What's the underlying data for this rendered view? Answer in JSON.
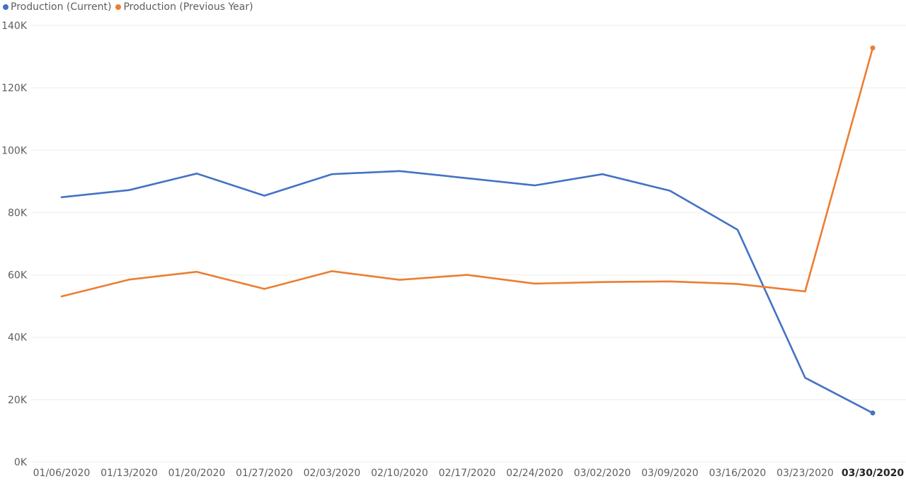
{
  "chart_data": {
    "type": "line",
    "categories": [
      "01/06/2020",
      "01/13/2020",
      "01/20/2020",
      "01/27/2020",
      "02/03/2020",
      "02/10/2020",
      "02/17/2020",
      "02/24/2020",
      "03/02/2020",
      "03/09/2020",
      "03/16/2020",
      "03/23/2020",
      "03/30/2020"
    ],
    "highlighted_category": "03/30/2020",
    "series": [
      {
        "name": "Production (Current)",
        "color": "#4472c4",
        "values": [
          84900,
          87200,
          92500,
          85400,
          92300,
          93300,
          91000,
          88700,
          92300,
          87000,
          74500,
          27000,
          15700
        ]
      },
      {
        "name": "Production (Previous Year)",
        "color": "#ed7d31",
        "values": [
          53100,
          58500,
          61000,
          55500,
          61200,
          58400,
          60000,
          57200,
          57700,
          57900,
          57100,
          54700,
          132800
        ]
      }
    ],
    "yticks": [
      "0K",
      "20K",
      "40K",
      "60K",
      "80K",
      "100K",
      "120K",
      "140K"
    ],
    "ylim": [
      0,
      140000
    ],
    "grid": true,
    "legend_position": "top-left"
  }
}
